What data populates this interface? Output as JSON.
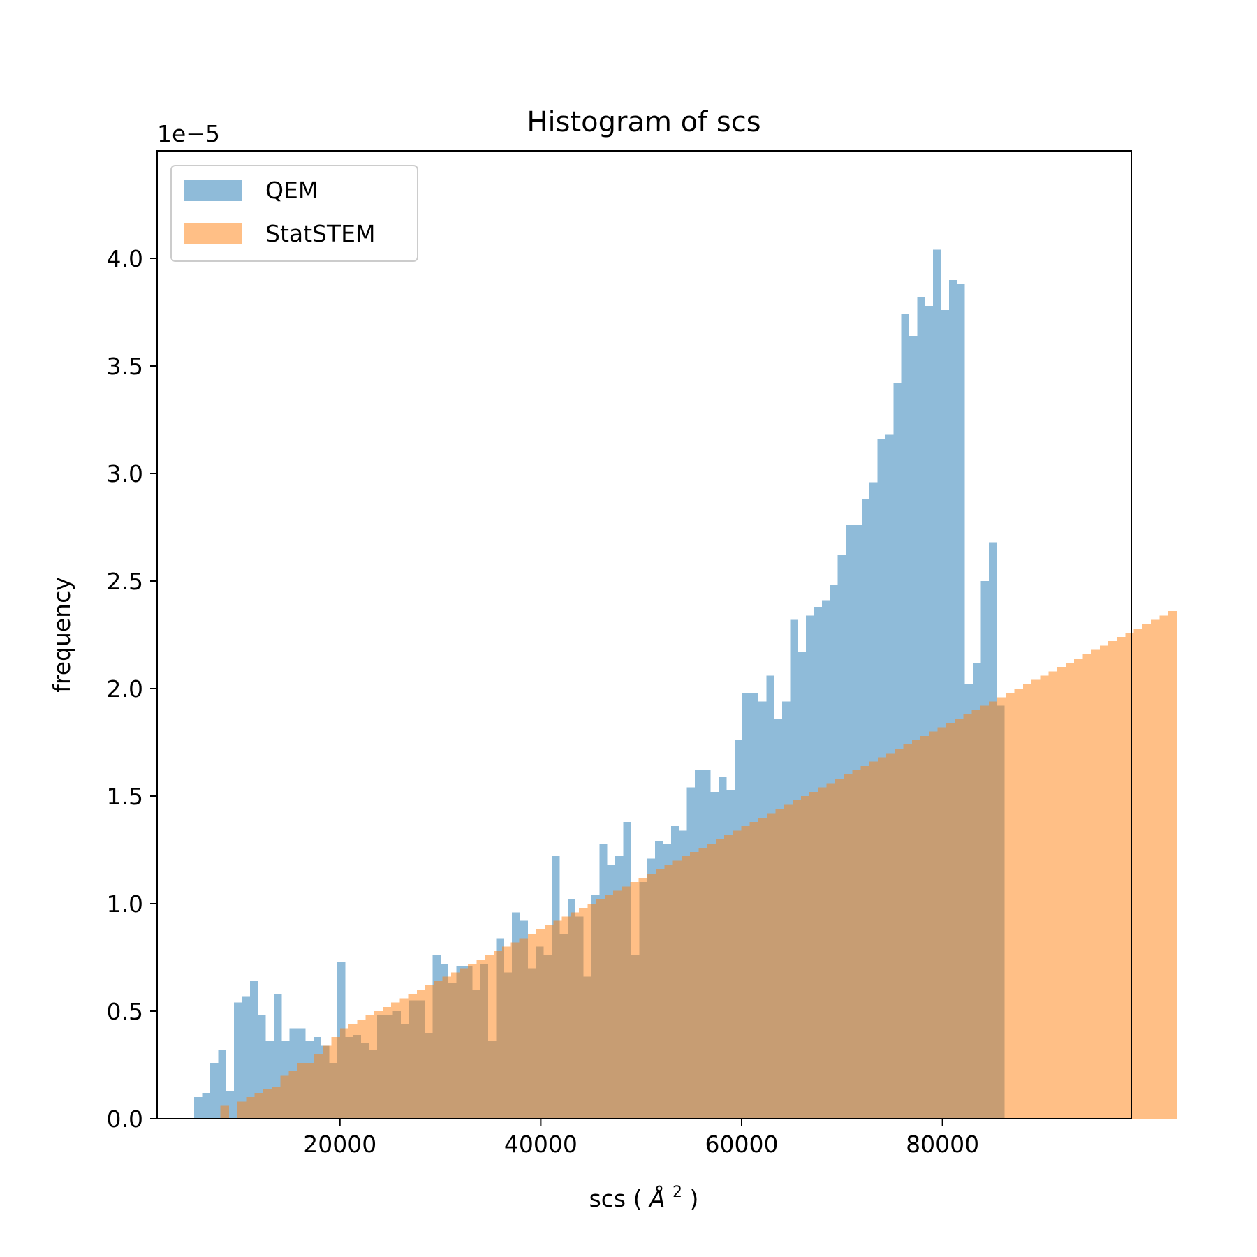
{
  "chart_data": {
    "type": "histogram",
    "title": "Histogram of scs",
    "xlabel": "scs ($\\AA^2$)",
    "xlabel_parts": [
      "scs (",
      "Å",
      "2",
      ")"
    ],
    "ylabel": "frequency",
    "y_offset_label": "1e−5",
    "xlim": [
      1800,
      98800
    ],
    "ylim": [
      0,
      4.5
    ],
    "x_ticks": [
      20000,
      40000,
      60000,
      80000
    ],
    "x_tick_labels": [
      "20000",
      "40000",
      "60000",
      "80000"
    ],
    "y_ticks": [
      0,
      0.5,
      1.0,
      1.5,
      2.0,
      2.5,
      3.0,
      3.5,
      4.0
    ],
    "y_tick_labels": [
      "0.0",
      "0.5",
      "1.0",
      "1.5",
      "2.0",
      "2.5",
      "3.0",
      "3.5",
      "4.0"
    ],
    "legend_position": "top-left",
    "series": [
      {
        "name": "QEM",
        "color": "#1f77b4",
        "alpha": 0.5,
        "x_start": 5500,
        "bin_width": 791,
        "values": [
          0.1,
          0.12,
          0.26,
          0.32,
          0.13,
          0.54,
          0.57,
          0.64,
          0.48,
          0.36,
          0.58,
          0.36,
          0.42,
          0.42,
          0.36,
          0.38,
          0.34,
          0.26,
          0.73,
          0.38,
          0.39,
          0.35,
          0.32,
          0.48,
          0.48,
          0.5,
          0.44,
          0.55,
          0.55,
          0.4,
          0.76,
          0.72,
          0.63,
          0.71,
          0.71,
          0.6,
          0.72,
          0.36,
          0.84,
          0.68,
          0.96,
          0.92,
          0.7,
          0.8,
          0.76,
          1.22,
          0.86,
          1.02,
          0.94,
          0.66,
          1.04,
          1.28,
          1.18,
          1.22,
          1.38,
          0.76,
          1.1,
          1.21,
          1.29,
          1.28,
          1.36,
          1.34,
          1.54,
          1.62,
          1.62,
          1.52,
          1.59,
          1.53,
          1.76,
          1.98,
          1.98,
          1.94,
          2.06,
          1.86,
          1.94,
          2.32,
          2.17,
          2.34,
          2.38,
          2.41,
          2.48,
          2.62,
          2.76,
          2.76,
          2.88,
          2.96,
          3.16,
          3.18,
          3.42,
          3.74,
          3.64,
          3.82,
          3.78,
          4.04,
          3.76,
          3.9,
          3.88,
          2.02,
          2.12,
          2.5,
          2.68,
          1.92
        ]
      },
      {
        "name": "StatSTEM",
        "color": "#ff7f0e",
        "alpha": 0.5,
        "x_start": 8110,
        "bin_width": 850,
        "values": [
          0.06,
          0.0,
          0.08,
          0.1,
          0.12,
          0.14,
          0.15,
          0.2,
          0.22,
          0.26,
          0.26,
          0.3,
          0.34,
          0.38,
          0.42,
          0.44,
          0.46,
          0.48,
          0.5,
          0.52,
          0.54,
          0.56,
          0.58,
          0.6,
          0.62,
          0.64,
          0.66,
          0.68,
          0.7,
          0.72,
          0.74,
          0.76,
          0.78,
          0.8,
          0.82,
          0.84,
          0.86,
          0.88,
          0.9,
          0.92,
          0.94,
          0.96,
          0.98,
          1.0,
          1.02,
          1.04,
          1.06,
          1.08,
          1.1,
          1.12,
          1.14,
          1.16,
          1.18,
          1.2,
          1.22,
          1.24,
          1.26,
          1.28,
          1.3,
          1.32,
          1.34,
          1.36,
          1.38,
          1.4,
          1.42,
          1.44,
          1.46,
          1.48,
          1.5,
          1.52,
          1.54,
          1.56,
          1.58,
          1.6,
          1.62,
          1.64,
          1.66,
          1.68,
          1.7,
          1.72,
          1.74,
          1.76,
          1.78,
          1.8,
          1.82,
          1.84,
          1.86,
          1.88,
          1.9,
          1.92,
          1.94,
          1.96,
          1.98,
          2.0,
          2.02,
          2.04,
          2.06,
          2.08,
          2.1,
          2.12,
          2.14,
          2.16,
          2.18,
          2.2,
          2.22,
          2.24,
          2.26,
          2.28,
          2.3,
          2.32,
          2.34,
          2.36
        ]
      }
    ]
  }
}
